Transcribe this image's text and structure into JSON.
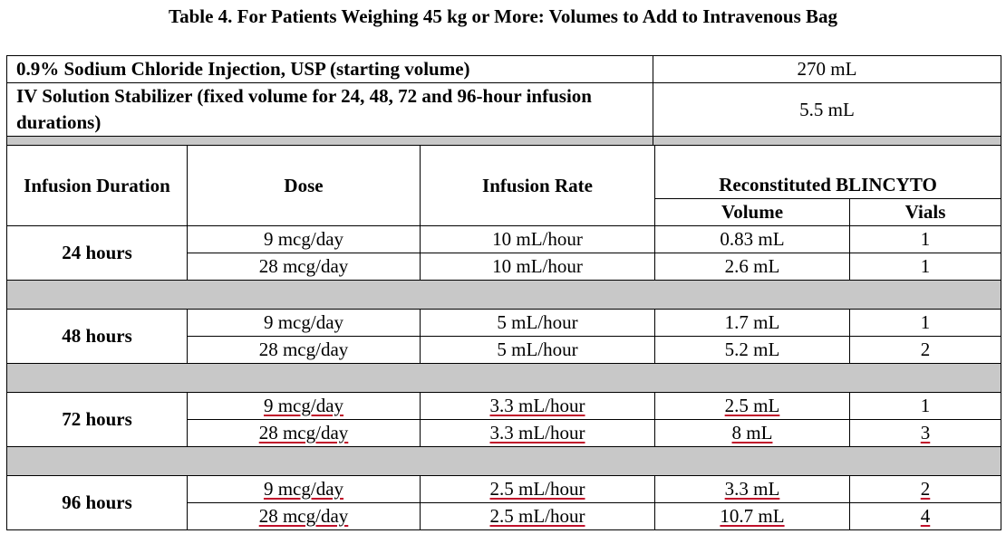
{
  "caption": "Table 4. For Patients Weighing 45 kg or More: Volumes to Add to Intravenous Bag",
  "setup_rows": [
    {
      "label": "0.9% Sodium Chloride Injection, USP (starting volume)",
      "value": "270 mL"
    },
    {
      "label": "IV Solution Stabilizer (fixed volume for 24, 48, 72 and 96-hour infusion durations)",
      "value": "5.5 mL"
    }
  ],
  "headers": {
    "duration": "Infusion Duration",
    "dose": "Dose",
    "rate": "Infusion Rate",
    "reconstituted": "Reconstituted BLINCYTO",
    "volume": "Volume",
    "vials": "Vials"
  },
  "groups": [
    {
      "duration": "24 hours",
      "rows": [
        {
          "dose": "9 mcg/day",
          "rate": "10 mL/hour",
          "volume": "0.83 mL",
          "vials": "1"
        },
        {
          "dose": "28 mcg/day",
          "rate": "10 mL/hour",
          "volume": "2.6 mL",
          "vials": "1"
        }
      ]
    },
    {
      "duration": "48 hours",
      "rows": [
        {
          "dose": "9 mcg/day",
          "rate": "5 mL/hour",
          "volume": "1.7 mL",
          "vials": "1"
        },
        {
          "dose": "28 mcg/day",
          "rate": "5 mL/hour",
          "volume": "5.2 mL",
          "vials": "2"
        }
      ]
    },
    {
      "duration": "72 hours",
      "rows": [
        {
          "dose": "9 mcg/day",
          "rate": "3.3 mL/hour",
          "volume": "2.5 mL",
          "vials": "1"
        },
        {
          "dose": "28 mcg/day",
          "rate": "3.3 mL/hour",
          "volume": "8 mL",
          "vials": "3"
        }
      ]
    },
    {
      "duration": "96 hours",
      "rows": [
        {
          "dose": "9 mcg/day",
          "rate": "2.5 mL/hour",
          "volume": "3.3 mL",
          "vials": "2"
        },
        {
          "dose": "28 mcg/day",
          "rate": "2.5 mL/hour",
          "volume": "10.7 mL",
          "vials": "4"
        }
      ]
    }
  ]
}
